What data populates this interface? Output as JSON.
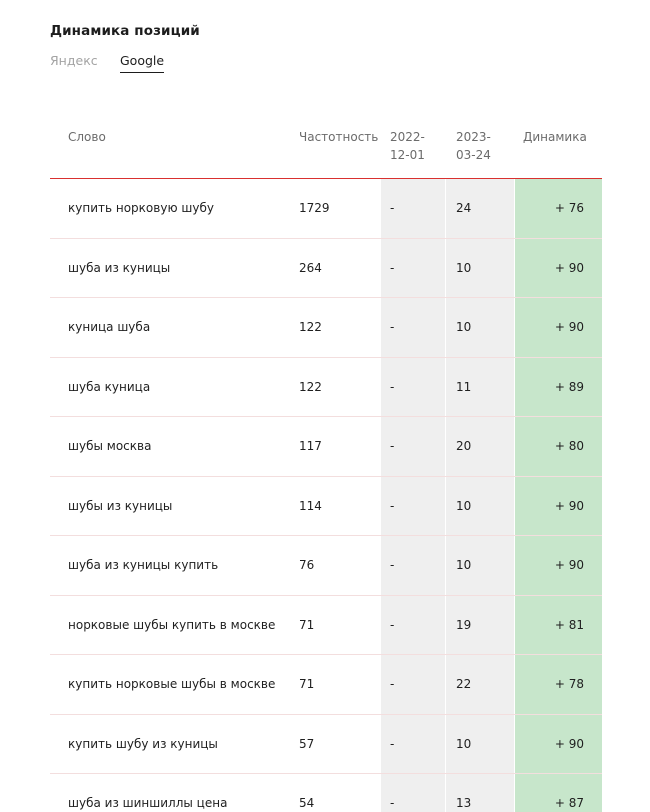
{
  "title": "Динамика позиций",
  "tabs": [
    {
      "label": "Яндекс",
      "active": false
    },
    {
      "label": "Google",
      "active": true
    }
  ],
  "table": {
    "headers": {
      "word": "Слово",
      "frequency": "Частотность",
      "date1": "2022-12-01",
      "date2": "2023-03-24",
      "dynamics": "Динамика"
    },
    "rows": [
      {
        "word": "купить норковую шубу",
        "freq": "1729",
        "d1": "-",
        "d2": "24",
        "dyn": "+ 76"
      },
      {
        "word": "шуба из куницы",
        "freq": "264",
        "d1": "-",
        "d2": "10",
        "dyn": "+ 90"
      },
      {
        "word": "куница шуба",
        "freq": "122",
        "d1": "-",
        "d2": "10",
        "dyn": "+ 90"
      },
      {
        "word": "шуба куница",
        "freq": "122",
        "d1": "-",
        "d2": "11",
        "dyn": "+ 89"
      },
      {
        "word": "шубы москва",
        "freq": "117",
        "d1": "-",
        "d2": "20",
        "dyn": "+ 80"
      },
      {
        "word": "шубы из куницы",
        "freq": "114",
        "d1": "-",
        "d2": "10",
        "dyn": "+ 90"
      },
      {
        "word": "шуба из куницы купить",
        "freq": "76",
        "d1": "-",
        "d2": "10",
        "dyn": "+ 90"
      },
      {
        "word": "норковые шубы купить в москве",
        "freq": "71",
        "d1": "-",
        "d2": "19",
        "dyn": "+ 81"
      },
      {
        "word": "купить норковые шубы в москве",
        "freq": "71",
        "d1": "-",
        "d2": "22",
        "dyn": "+ 78"
      },
      {
        "word": "купить шубу из куницы",
        "freq": "57",
        "d1": "-",
        "d2": "10",
        "dyn": "+ 90"
      },
      {
        "word": "шуба из шиншиллы цена",
        "freq": "54",
        "d1": "-",
        "d2": "13",
        "dyn": "+ 87"
      }
    ]
  },
  "colors": {
    "header_border": "#d9302f",
    "date_column_bg": "#efefef",
    "dynamics_column_bg": "#c7e6cb"
  }
}
